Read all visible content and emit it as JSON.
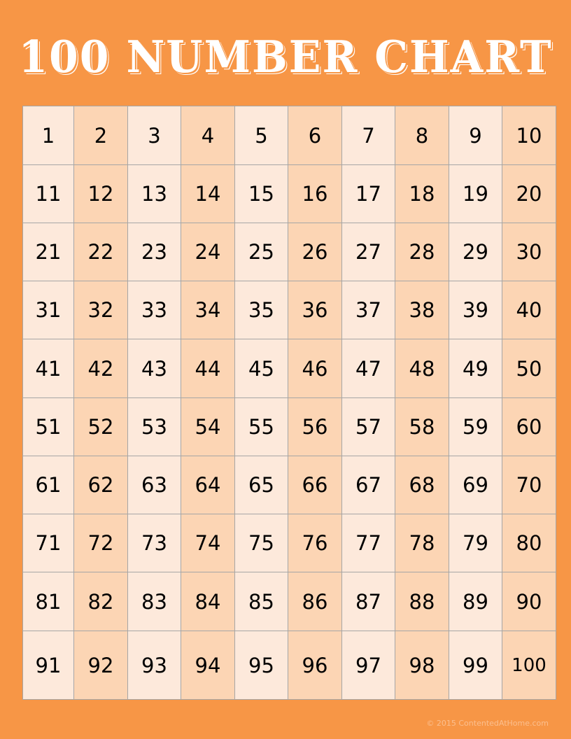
{
  "title": "100 NUMBER CHART",
  "footer": "© 2015 ContentedAtHome.com",
  "colors": {
    "background": "#f79646",
    "cell_light": "#fde9db",
    "cell_dark": "#fcd5b4",
    "border": "#a6a6a6"
  },
  "rows": [
    [
      "1",
      "2",
      "3",
      "4",
      "5",
      "6",
      "7",
      "8",
      "9",
      "10"
    ],
    [
      "11",
      "12",
      "13",
      "14",
      "15",
      "16",
      "17",
      "18",
      "19",
      "20"
    ],
    [
      "21",
      "22",
      "23",
      "24",
      "25",
      "26",
      "27",
      "28",
      "29",
      "30"
    ],
    [
      "31",
      "32",
      "33",
      "34",
      "35",
      "36",
      "37",
      "38",
      "39",
      "40"
    ],
    [
      "41",
      "42",
      "43",
      "44",
      "45",
      "46",
      "47",
      "48",
      "49",
      "50"
    ],
    [
      "51",
      "52",
      "53",
      "54",
      "55",
      "56",
      "57",
      "58",
      "59",
      "60"
    ],
    [
      "61",
      "62",
      "63",
      "64",
      "65",
      "66",
      "67",
      "68",
      "69",
      "70"
    ],
    [
      "71",
      "72",
      "73",
      "74",
      "75",
      "76",
      "77",
      "78",
      "79",
      "80"
    ],
    [
      "81",
      "82",
      "83",
      "84",
      "85",
      "86",
      "87",
      "88",
      "89",
      "90"
    ],
    [
      "91",
      "92",
      "93",
      "94",
      "95",
      "96",
      "97",
      "98",
      "99",
      "100"
    ]
  ]
}
